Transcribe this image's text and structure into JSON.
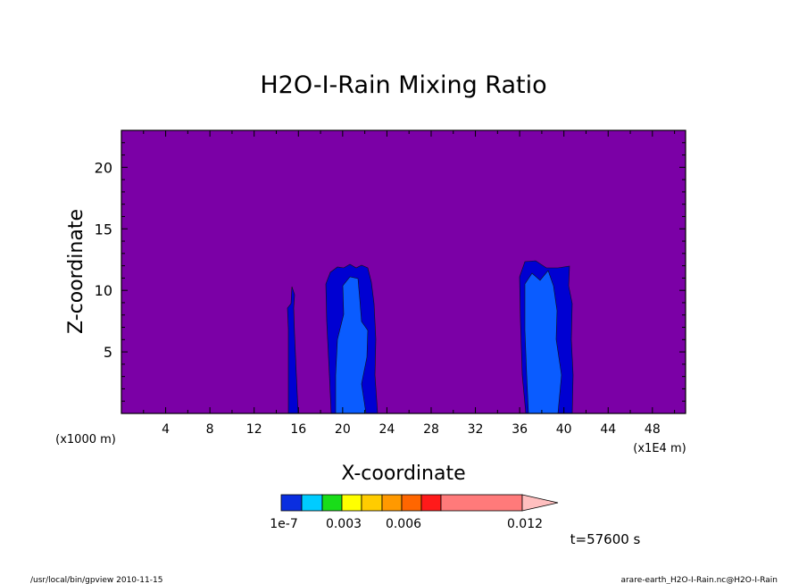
{
  "chart_data": {
    "type": "heatmap",
    "title": "H2O-I-Rain Mixing Ratio",
    "xlabel": "X-coordinate",
    "ylabel": "Z-coordinate",
    "x_unit_left": "(x1000 m)",
    "x_unit_right": "(x1E4 m)",
    "xlim": [
      0,
      51
    ],
    "ylim": [
      0,
      23
    ],
    "x_ticks": [
      4,
      8,
      12,
      16,
      20,
      24,
      28,
      32,
      36,
      40,
      44,
      48
    ],
    "y_ticks": [
      5,
      10,
      15,
      20
    ],
    "background_color": "#7b00a6",
    "contour_levels": [
      {
        "name": "level-1",
        "color": "#0000d2"
      },
      {
        "name": "level-2",
        "color": "#0a5cff"
      }
    ],
    "features": [
      {
        "name": "column-near-15",
        "x_center": 15.4,
        "z_top": 10.2,
        "level": 1
      },
      {
        "name": "column-near-21",
        "x_center": 21.0,
        "z_top": 12.0,
        "level": 2
      },
      {
        "name": "column-near-38",
        "x_center": 38.3,
        "z_top": 12.3,
        "level": 2
      }
    ],
    "colorbar": {
      "colors": [
        "#0a2ee0",
        "#00ccff",
        "#19dd19",
        "#ffff00",
        "#ffcc00",
        "#ff9900",
        "#ff6600",
        "#ff1a1a",
        "#ff7a7a"
      ],
      "extension_color": "#ffbfbf",
      "tick_labels": [
        "1e-7",
        "0.003",
        "0.006",
        "0.012"
      ]
    },
    "time_label": "t=57600 s"
  },
  "footer": {
    "left": "/usr/local/bin/gpview  2010-11-15",
    "right": "arare-earth_H2O-I-Rain.nc@H2O-I-Rain"
  }
}
